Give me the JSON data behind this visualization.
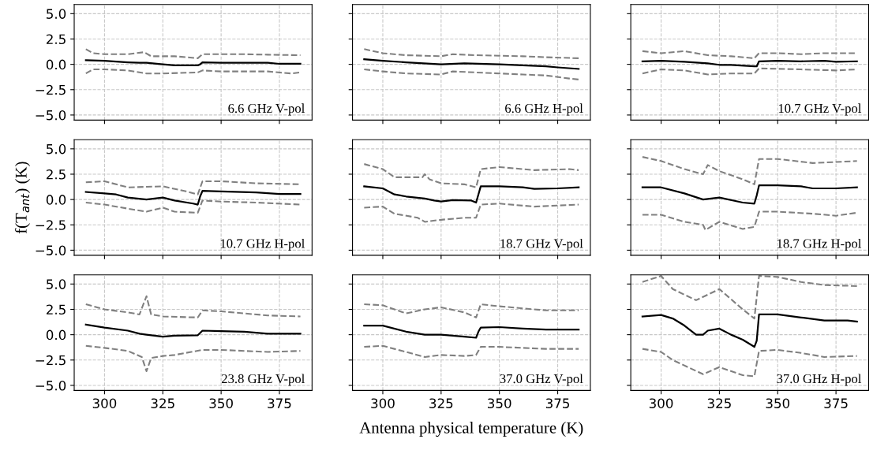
{
  "chart_data": [
    {
      "type": "line",
      "xlim": [
        287,
        389
      ],
      "ylim": [
        -5.5,
        5.9
      ],
      "tick_labels": "y",
      "xticks": [
        300,
        325,
        350,
        375
      ],
      "yticks": [
        {
          "value": -5,
          "label": "−5.0"
        },
        {
          "value": -2.5,
          "label": "−2.5"
        },
        {
          "value": 0,
          "label": "0.0"
        },
        {
          "value": 2.5,
          "label": "2.5"
        },
        {
          "value": 5,
          "label": "5.0"
        }
      ],
      "grid": true,
      "annotations": [
        "6.6 GHz V-pol"
      ],
      "series": [
        {
          "color": "#000000",
          "line_style": "solid",
          "x": [
            292,
            300,
            310,
            315,
            318,
            325,
            330,
            340,
            341,
            342,
            350,
            360,
            370,
            375,
            384
          ],
          "values": [
            0.4,
            0.35,
            0.2,
            0.15,
            0.15,
            0.0,
            -0.1,
            -0.1,
            0.0,
            0.2,
            0.15,
            0.15,
            0.15,
            0.05,
            0.05
          ]
        },
        {
          "color": "#808080",
          "line_style": "dashed",
          "x": [
            292,
            295,
            300,
            310,
            317,
            320,
            330,
            340,
            342,
            350,
            360,
            370,
            384
          ],
          "values": [
            1.5,
            1.1,
            1.0,
            1.0,
            1.2,
            0.8,
            0.8,
            0.6,
            1.0,
            1.0,
            1.0,
            0.95,
            0.9
          ]
        },
        {
          "color": "#808080",
          "line_style": "dashed",
          "x": [
            292,
            295,
            300,
            310,
            318,
            325,
            340,
            342,
            350,
            370,
            380,
            384
          ],
          "values": [
            -0.9,
            -0.5,
            -0.5,
            -0.6,
            -0.9,
            -0.9,
            -0.8,
            -0.6,
            -0.7,
            -0.7,
            -0.9,
            -0.8
          ]
        }
      ]
    },
    {
      "type": "line",
      "xlim": [
        287,
        389
      ],
      "ylim": [
        -5.5,
        5.9
      ],
      "tick_labels": false,
      "xticks": [
        300,
        325,
        350,
        375
      ],
      "yticks": [
        -5,
        -2.5,
        0,
        2.5,
        5
      ],
      "grid": true,
      "annotations": [
        "6.6 GHz H-pol"
      ],
      "series": [
        {
          "color": "#000000",
          "line_style": "solid",
          "x": [
            292,
            300,
            310,
            325,
            335,
            350,
            360,
            370,
            375,
            384
          ],
          "values": [
            0.5,
            0.35,
            0.2,
            0.0,
            0.1,
            0.0,
            -0.1,
            -0.2,
            -0.3,
            -0.45
          ]
        },
        {
          "color": "#808080",
          "line_style": "dashed",
          "x": [
            292,
            300,
            310,
            325,
            330,
            340,
            350,
            360,
            370,
            384
          ],
          "values": [
            1.5,
            1.1,
            0.9,
            0.8,
            1.0,
            0.9,
            0.85,
            0.8,
            0.7,
            0.6
          ]
        },
        {
          "color": "#808080",
          "line_style": "dashed",
          "x": [
            292,
            300,
            310,
            325,
            330,
            350,
            360,
            370,
            380,
            384
          ],
          "values": [
            -0.5,
            -0.7,
            -0.9,
            -1.0,
            -0.7,
            -0.9,
            -1.0,
            -1.1,
            -1.4,
            -1.5
          ]
        }
      ]
    },
    {
      "type": "line",
      "xlim": [
        287,
        389
      ],
      "ylim": [
        -5.5,
        5.9
      ],
      "tick_labels": false,
      "xticks": [
        300,
        325,
        350,
        375
      ],
      "yticks": [
        -5,
        -2.5,
        0,
        2.5,
        5
      ],
      "grid": true,
      "annotations": [
        "10.7 GHz V-pol"
      ],
      "series": [
        {
          "color": "#000000",
          "line_style": "solid",
          "x": [
            292,
            300,
            310,
            320,
            325,
            330,
            340,
            341,
            342,
            350,
            360,
            370,
            375,
            384
          ],
          "values": [
            0.3,
            0.35,
            0.25,
            0.1,
            -0.05,
            -0.05,
            -0.2,
            -0.2,
            0.3,
            0.35,
            0.3,
            0.35,
            0.25,
            0.3
          ]
        },
        {
          "color": "#808080",
          "line_style": "dashed",
          "x": [
            292,
            300,
            310,
            320,
            330,
            340,
            342,
            350,
            360,
            370,
            384
          ],
          "values": [
            1.3,
            1.1,
            1.3,
            0.9,
            0.8,
            0.6,
            1.1,
            1.1,
            1.0,
            1.1,
            1.1
          ]
        },
        {
          "color": "#808080",
          "line_style": "dashed",
          "x": [
            292,
            300,
            310,
            320,
            330,
            340,
            342,
            360,
            375,
            384
          ],
          "values": [
            -0.9,
            -0.5,
            -0.6,
            -1.0,
            -0.9,
            -0.9,
            -0.4,
            -0.5,
            -0.6,
            -0.5
          ]
        }
      ]
    },
    {
      "type": "line",
      "ylabel": "f(T$_{ant}$) (K)",
      "xlim": [
        287,
        389
      ],
      "ylim": [
        -5.5,
        5.9
      ],
      "tick_labels": "y",
      "xticks": [
        300,
        325,
        350,
        375
      ],
      "yticks": [
        {
          "value": -5,
          "label": "−5.0"
        },
        {
          "value": -2.5,
          "label": "−2.5"
        },
        {
          "value": 0,
          "label": "0.0"
        },
        {
          "value": 2.5,
          "label": "2.5"
        },
        {
          "value": 5,
          "label": "5.0"
        }
      ],
      "grid": true,
      "annotations": [
        "10.7 GHz H-pol"
      ],
      "series": [
        {
          "color": "#000000",
          "line_style": "solid",
          "x": [
            292,
            300,
            305,
            310,
            318,
            325,
            330,
            338,
            340,
            341,
            342,
            350,
            365,
            375,
            384
          ],
          "values": [
            0.75,
            0.6,
            0.5,
            0.2,
            0.0,
            0.2,
            -0.1,
            -0.4,
            -0.5,
            0.3,
            0.85,
            0.8,
            0.7,
            0.55,
            0.55
          ]
        },
        {
          "color": "#808080",
          "line_style": "dashed",
          "x": [
            292,
            300,
            310,
            325,
            335,
            340,
            342,
            350,
            365,
            384
          ],
          "values": [
            1.7,
            1.8,
            1.2,
            1.3,
            0.8,
            0.5,
            1.8,
            1.8,
            1.6,
            1.5
          ]
        },
        {
          "color": "#808080",
          "line_style": "dashed",
          "x": [
            292,
            300,
            310,
            318,
            325,
            330,
            340,
            342,
            350,
            365,
            384
          ],
          "values": [
            -0.3,
            -0.5,
            -0.9,
            -1.2,
            -0.8,
            -1.2,
            -1.3,
            -0.1,
            -0.2,
            -0.3,
            -0.5
          ]
        }
      ]
    },
    {
      "type": "line",
      "xlim": [
        287,
        389
      ],
      "ylim": [
        -5.5,
        5.9
      ],
      "tick_labels": false,
      "xticks": [
        300,
        325,
        350,
        375
      ],
      "yticks": [
        -5,
        -2.5,
        0,
        2.5,
        5
      ],
      "grid": true,
      "annotations": [
        "18.7 GHz V-pol"
      ],
      "series": [
        {
          "color": "#000000",
          "line_style": "solid",
          "x": [
            292,
            300,
            305,
            310,
            318,
            322,
            325,
            330,
            338,
            340,
            341,
            342,
            350,
            360,
            365,
            375,
            384
          ],
          "values": [
            1.3,
            1.1,
            0.5,
            0.3,
            0.1,
            -0.1,
            -0.2,
            -0.05,
            -0.1,
            -0.3,
            0.5,
            1.3,
            1.3,
            1.2,
            1.05,
            1.1,
            1.2
          ]
        },
        {
          "color": "#808080",
          "line_style": "dashed",
          "x": [
            292,
            300,
            305,
            317,
            318,
            320,
            325,
            335,
            340,
            342,
            350,
            365,
            380,
            384
          ],
          "values": [
            3.5,
            3.0,
            2.2,
            2.2,
            2.5,
            2.0,
            1.6,
            1.5,
            1.2,
            3.0,
            3.2,
            2.9,
            3.0,
            2.9
          ]
        },
        {
          "color": "#808080",
          "line_style": "dashed",
          "x": [
            292,
            300,
            305,
            315,
            318,
            325,
            335,
            340,
            342,
            350,
            360,
            365,
            384
          ],
          "values": [
            -0.8,
            -0.7,
            -1.4,
            -1.8,
            -2.2,
            -2.0,
            -1.8,
            -1.8,
            -0.5,
            -0.4,
            -0.6,
            -0.7,
            -0.5
          ]
        }
      ]
    },
    {
      "type": "line",
      "xlim": [
        287,
        389
      ],
      "ylim": [
        -5.5,
        5.9
      ],
      "tick_labels": false,
      "xticks": [
        300,
        325,
        350,
        375
      ],
      "yticks": [
        -5,
        -2.5,
        0,
        2.5,
        5
      ],
      "grid": true,
      "annotations": [
        "18.7 GHz H-pol"
      ],
      "series": [
        {
          "color": "#000000",
          "line_style": "solid",
          "x": [
            292,
            300,
            310,
            318,
            325,
            335,
            340,
            341,
            342,
            350,
            360,
            365,
            375,
            384
          ],
          "values": [
            1.2,
            1.2,
            0.6,
            0.0,
            0.2,
            -0.3,
            -0.4,
            0.4,
            1.4,
            1.4,
            1.3,
            1.1,
            1.1,
            1.2
          ]
        },
        {
          "color": "#808080",
          "line_style": "dashed",
          "x": [
            292,
            300,
            310,
            318,
            320,
            325,
            335,
            340,
            342,
            350,
            365,
            375,
            384
          ],
          "values": [
            4.2,
            3.8,
            3.0,
            2.5,
            3.4,
            2.8,
            2.0,
            1.5,
            4.0,
            4.0,
            3.6,
            3.7,
            3.8
          ]
        },
        {
          "color": "#808080",
          "line_style": "dashed",
          "x": [
            292,
            300,
            310,
            318,
            319,
            325,
            335,
            340,
            342,
            350,
            365,
            375,
            384
          ],
          "values": [
            -1.5,
            -1.5,
            -2.2,
            -2.5,
            -3.0,
            -2.2,
            -2.9,
            -2.7,
            -1.2,
            -1.2,
            -1.4,
            -1.6,
            -1.3
          ]
        }
      ]
    },
    {
      "type": "line",
      "xlim": [
        287,
        389
      ],
      "ylim": [
        -5.5,
        5.9
      ],
      "xticks": [
        300,
        325,
        350,
        375
      ],
      "yticks": [
        {
          "value": -5,
          "label": "−5.0"
        },
        {
          "value": -2.5,
          "label": "−2.5"
        },
        {
          "value": 0,
          "label": "0.0"
        },
        {
          "value": 2.5,
          "label": "2.5"
        },
        {
          "value": 5,
          "label": "5.0"
        }
      ],
      "grid": true,
      "annotations": [
        "23.8 GHz V-pol"
      ],
      "series": [
        {
          "color": "#000000",
          "line_style": "solid",
          "x": [
            292,
            300,
            310,
            315,
            318,
            325,
            330,
            340,
            342,
            350,
            360,
            370,
            384
          ],
          "values": [
            1.0,
            0.7,
            0.4,
            0.1,
            0.0,
            -0.2,
            -0.1,
            -0.05,
            0.4,
            0.35,
            0.3,
            0.1,
            0.1
          ]
        },
        {
          "color": "#808080",
          "line_style": "dashed",
          "x": [
            292,
            300,
            310,
            315,
            318,
            320,
            325,
            340,
            342,
            350,
            360,
            370,
            384
          ],
          "values": [
            3.0,
            2.5,
            2.2,
            2.0,
            3.8,
            2.0,
            1.8,
            1.7,
            2.4,
            2.3,
            2.1,
            1.9,
            1.8
          ]
        },
        {
          "color": "#808080",
          "line_style": "dashed",
          "x": [
            292,
            300,
            310,
            316,
            318,
            320,
            325,
            330,
            342,
            350,
            360,
            370,
            384
          ],
          "values": [
            -1.1,
            -1.3,
            -1.6,
            -2.2,
            -3.6,
            -2.3,
            -2.1,
            -2.0,
            -1.5,
            -1.5,
            -1.6,
            -1.7,
            -1.6
          ]
        }
      ]
    },
    {
      "type": "line",
      "xlabel": "Antenna physical temperature (K)",
      "xlim": [
        287,
        389
      ],
      "ylim": [
        -5.5,
        5.9
      ],
      "tick_labels": "x",
      "xticks": [
        300,
        325,
        350,
        375
      ],
      "yticks": [
        -5,
        -2.5,
        0,
        2.5,
        5
      ],
      "grid": true,
      "annotations": [
        "37.0 GHz V-pol"
      ],
      "series": [
        {
          "color": "#000000",
          "line_style": "solid",
          "x": [
            292,
            300,
            310,
            318,
            325,
            335,
            340,
            341,
            342,
            350,
            360,
            370,
            384
          ],
          "values": [
            0.9,
            0.9,
            0.3,
            0.0,
            0.0,
            -0.2,
            -0.3,
            0.3,
            0.7,
            0.75,
            0.6,
            0.5,
            0.5
          ]
        },
        {
          "color": "#808080",
          "line_style": "dashed",
          "x": [
            292,
            300,
            310,
            318,
            325,
            335,
            340,
            342,
            350,
            360,
            370,
            384
          ],
          "values": [
            3.0,
            2.9,
            2.1,
            2.5,
            2.7,
            2.2,
            1.7,
            3.0,
            2.8,
            2.6,
            2.4,
            2.4
          ]
        },
        {
          "color": "#808080",
          "line_style": "dashed",
          "x": [
            292,
            300,
            310,
            318,
            325,
            335,
            340,
            342,
            350,
            360,
            370,
            384
          ],
          "values": [
            -1.2,
            -1.1,
            -1.7,
            -2.2,
            -2.0,
            -2.1,
            -2.0,
            -1.2,
            -1.2,
            -1.3,
            -1.4,
            -1.4
          ]
        }
      ]
    },
    {
      "type": "line",
      "xlim": [
        287,
        389
      ],
      "ylim": [
        -5.5,
        5.9
      ],
      "tick_labels": "x",
      "xticks": [
        300,
        325,
        350,
        375
      ],
      "yticks": [
        -5,
        -2.5,
        0,
        2.5,
        5
      ],
      "grid": true,
      "annotations": [
        "37.0 GHz H-pol"
      ],
      "series": [
        {
          "color": "#000000",
          "line_style": "solid",
          "x": [
            292,
            300,
            305,
            310,
            315,
            318,
            320,
            325,
            330,
            335,
            340,
            341,
            342,
            350,
            360,
            370,
            380,
            384
          ],
          "values": [
            1.8,
            1.95,
            1.6,
            0.9,
            0.0,
            0.0,
            0.4,
            0.6,
            0.0,
            -0.5,
            -1.2,
            -0.6,
            2.0,
            2.0,
            1.7,
            1.4,
            1.4,
            1.3
          ]
        },
        {
          "color": "#808080",
          "line_style": "dashed",
          "x": [
            292,
            300,
            305,
            315,
            325,
            335,
            340,
            342,
            350,
            360,
            370,
            384
          ],
          "values": [
            5.2,
            5.8,
            4.5,
            3.4,
            4.5,
            2.5,
            1.6,
            5.8,
            5.7,
            5.2,
            4.9,
            4.8
          ]
        },
        {
          "color": "#808080",
          "line_style": "dashed",
          "x": [
            292,
            300,
            305,
            318,
            325,
            335,
            340,
            342,
            350,
            360,
            370,
            384
          ],
          "values": [
            -1.4,
            -1.7,
            -2.5,
            -3.9,
            -3.2,
            -4.0,
            -4.1,
            -1.6,
            -1.5,
            -1.8,
            -2.2,
            -2.1
          ]
        }
      ]
    }
  ]
}
